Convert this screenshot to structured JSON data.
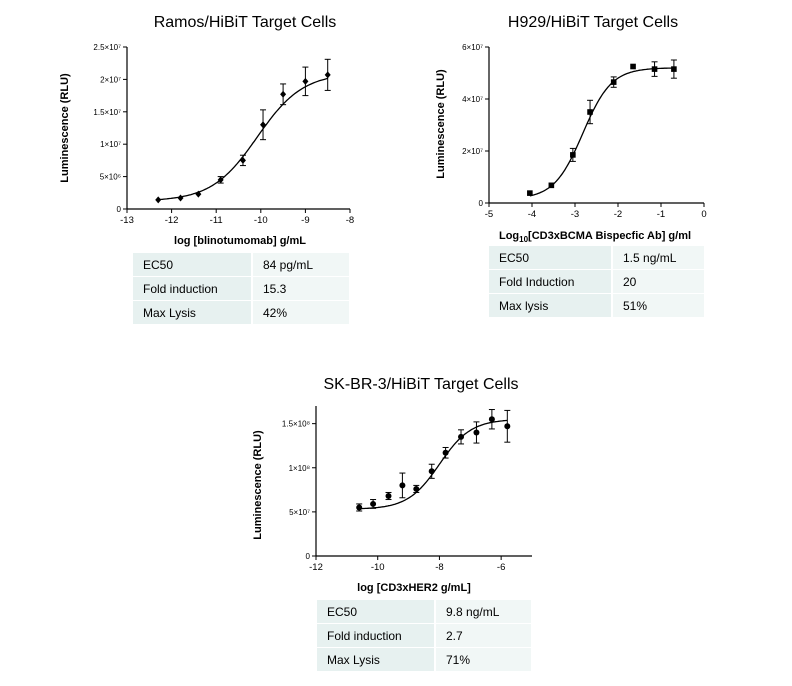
{
  "chart_data": [
    {
      "type": "scatter",
      "title": "Ramos/HiBiT Target Cells",
      "xlabel": "log [blinotumomab] g/mL",
      "ylabel": "Luminescence (RLU)",
      "xlim": [
        -13,
        -8
      ],
      "ylim": [
        0,
        25000000
      ],
      "x_ticks": [
        -13,
        -12,
        -11,
        -10,
        -9,
        -8
      ],
      "x_tick_labels": [
        "-13",
        "-12",
        "-11",
        "-10",
        "-9",
        "-8"
      ],
      "y_ticks": [
        0,
        5000000,
        10000000,
        15000000,
        20000000,
        25000000
      ],
      "y_tick_labels": [
        "0",
        "5×10⁶",
        "1×10⁷",
        "1.5×10⁷",
        "2×10⁷",
        "2.5×10⁷"
      ],
      "marker": "diamond",
      "curve": "4PL fit",
      "grid": false,
      "points": [
        {
          "x": -12.3,
          "y": 1400000,
          "err": 0
        },
        {
          "x": -11.8,
          "y": 1700000,
          "err": 0
        },
        {
          "x": -11.4,
          "y": 2300000,
          "err": 0
        },
        {
          "x": -10.9,
          "y": 4500000,
          "err": 500000
        },
        {
          "x": -10.4,
          "y": 7500000,
          "err": 800000
        },
        {
          "x": -9.95,
          "y": 13000000,
          "err": 2300000
        },
        {
          "x": -9.5,
          "y": 17700000,
          "err": 1600000
        },
        {
          "x": -9.0,
          "y": 19700000,
          "err": 2200000
        },
        {
          "x": -8.5,
          "y": 20700000,
          "err": 2400000
        }
      ],
      "fit": {
        "bottom": 1200000,
        "top": 21000000,
        "logEC50": -10.08,
        "hill": 0.85
      },
      "table": [
        {
          "label": "EC50",
          "value": "84 pg/mL"
        },
        {
          "label": "Fold induction",
          "value": "15.3"
        },
        {
          "label": "Max Lysis",
          "value": "42%"
        }
      ]
    },
    {
      "type": "scatter",
      "title": "H929/HiBiT Target Cells",
      "xlabel_prefix": "Log",
      "xlabel_sub": "10",
      "xlabel_rest": "[CD3xBCMA Bispecfic Ab] g/ml",
      "ylabel": "Luminescence (RLU)",
      "xlim": [
        -5,
        0
      ],
      "ylim": [
        0,
        60000000
      ],
      "x_ticks": [
        -5,
        -4,
        -3,
        -2,
        -1,
        0
      ],
      "x_tick_labels": [
        "-5",
        "-4",
        "-3",
        "-2",
        "-1",
        "0"
      ],
      "y_ticks": [
        0,
        20000000,
        40000000,
        60000000
      ],
      "y_tick_labels": [
        "0",
        "2×10⁷",
        "4×10⁷",
        "6×10⁷"
      ],
      "marker": "square",
      "curve": "4PL fit",
      "grid": false,
      "points": [
        {
          "x": -4.05,
          "y": 3800000,
          "err": 0
        },
        {
          "x": -3.55,
          "y": 6800000,
          "err": 0
        },
        {
          "x": -3.05,
          "y": 18500000,
          "err": 2500000
        },
        {
          "x": -2.65,
          "y": 35000000,
          "err": 4500000
        },
        {
          "x": -2.1,
          "y": 46500000,
          "err": 2000000
        },
        {
          "x": -1.65,
          "y": 52500000,
          "err": 0
        },
        {
          "x": -1.15,
          "y": 51500000,
          "err": 2800000
        },
        {
          "x": -0.7,
          "y": 51500000,
          "err": 3500000
        }
      ],
      "fit": {
        "bottom": 1500000,
        "top": 52000000,
        "logEC50": -2.82,
        "hill": 1.3
      },
      "table": [
        {
          "label": "EC50",
          "value": "1.5 ng/mL"
        },
        {
          "label": "Fold Induction",
          "value": "20"
        },
        {
          "label": "Max lysis",
          "value": "51%"
        }
      ]
    },
    {
      "type": "scatter",
      "title": "SK-BR-3/HiBiT Target Cells",
      "xlabel": "log [CD3xHER2 g/mL]",
      "ylabel": "Luminescence (RLU)",
      "xlim": [
        -12,
        -5
      ],
      "ylim": [
        0,
        170000000
      ],
      "x_ticks": [
        -12,
        -10,
        -8,
        -6
      ],
      "x_tick_labels": [
        "-12",
        "-10",
        "-8",
        "-6"
      ],
      "y_ticks": [
        0,
        50000000,
        100000000,
        150000000
      ],
      "y_tick_labels": [
        "0",
        "5×10⁷",
        "1×10⁸",
        "1.5×10⁸"
      ],
      "marker": "circle",
      "curve": "4PL fit",
      "grid": false,
      "points": [
        {
          "x": -10.6,
          "y": 55000000,
          "err": 4000000
        },
        {
          "x": -10.15,
          "y": 59000000,
          "err": 5000000
        },
        {
          "x": -9.65,
          "y": 68000000,
          "err": 4000000
        },
        {
          "x": -9.2,
          "y": 80000000,
          "err": 14000000
        },
        {
          "x": -8.75,
          "y": 76000000,
          "err": 4000000
        },
        {
          "x": -8.25,
          "y": 96000000,
          "err": 8000000
        },
        {
          "x": -7.8,
          "y": 117000000,
          "err": 6000000
        },
        {
          "x": -7.3,
          "y": 135000000,
          "err": 8000000
        },
        {
          "x": -6.8,
          "y": 140000000,
          "err": 12000000
        },
        {
          "x": -6.3,
          "y": 155000000,
          "err": 11000000
        },
        {
          "x": -5.8,
          "y": 147000000,
          "err": 18000000
        }
      ],
      "fit": {
        "bottom": 53000000,
        "top": 155000000,
        "logEC50": -8.0,
        "hill": 0.85
      },
      "table": [
        {
          "label": "EC50",
          "value": "9.8 ng/mL"
        },
        {
          "label": "Fold induction",
          "value": "2.7"
        },
        {
          "label": "Max Lysis",
          "value": "71%"
        }
      ]
    }
  ]
}
